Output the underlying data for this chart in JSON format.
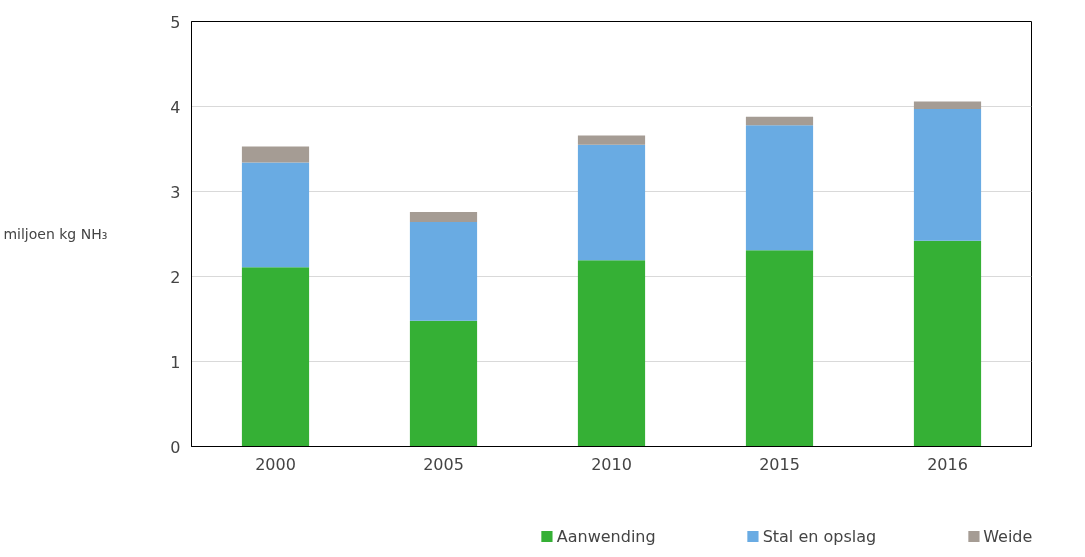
{
  "chart_data": {
    "type": "bar",
    "stacked": true,
    "ylabel": "miljoen kg NH₃",
    "categories": [
      "2000",
      "2005",
      "2010",
      "2015",
      "2016"
    ],
    "series": [
      {
        "name": "Aanwending",
        "color": "#35b035",
        "values": [
          2.11,
          1.48,
          2.19,
          2.31,
          2.42
        ]
      },
      {
        "name": "Stal en opslag",
        "color": "#69abe3",
        "values": [
          1.23,
          1.16,
          1.36,
          1.47,
          1.55
        ]
      },
      {
        "name": "Weide",
        "color": "#a59c94",
        "values": [
          0.19,
          0.12,
          0.11,
          0.1,
          0.09
        ]
      }
    ],
    "ylim": [
      0,
      5
    ],
    "yticks": [
      0,
      1,
      2,
      3,
      4,
      5
    ],
    "grid": "y",
    "legend": "bottom"
  }
}
